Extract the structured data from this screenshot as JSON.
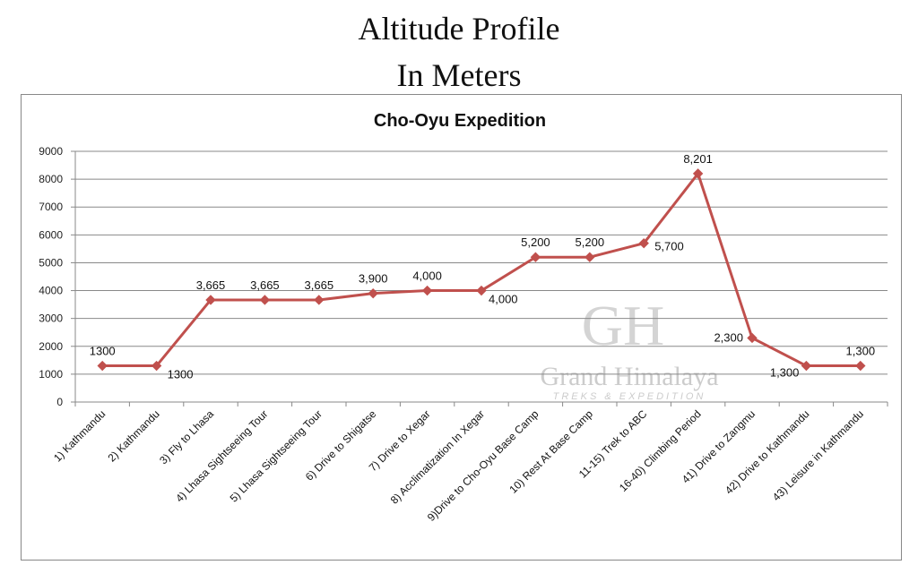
{
  "page": {
    "heading_line1": "Altitude Profile",
    "heading_line2": "In Meters"
  },
  "watermark": {
    "monogram": "GH",
    "name": "Grand Himalaya",
    "tagline": "TREKS & EXPEDITION"
  },
  "colors": {
    "series": "#C0504D",
    "grid": "#888888"
  },
  "chart_data": {
    "type": "line",
    "title": "Cho-Oyu Expedition",
    "xlabel": "",
    "ylabel": "",
    "ylim": [
      0,
      9000
    ],
    "yticks": [
      "0",
      "1000",
      "2000",
      "3000",
      "4000",
      "5000",
      "6000",
      "7000",
      "8000",
      "9000"
    ],
    "grid": true,
    "legend": "none",
    "categories": [
      "1) Kathmandu",
      "2) Kathmandu",
      "3) Fly to Lhasa",
      "4) Lhasa Sightseeing Tour",
      "5) Lhasa Sightseeing Tour",
      "6) Drive to Shigatse",
      "7) Drive to Xegar",
      "8) Acclimatization In Xegar",
      "9)Drive to Cho-Oyu Base Camp",
      "10) Rest At Base Camp",
      "11-15) Trek to ABC",
      "16-40) Climbing Period",
      "41) Drive to Zangmu",
      "42) Drive to Kathmandu",
      "43) Leisure in Kathmandu"
    ],
    "values": [
      1300,
      1300,
      3665,
      3665,
      3665,
      3900,
      4000,
      4000,
      5200,
      5200,
      5700,
      8201,
      2300,
      1300,
      1300
    ],
    "data_labels": [
      "1300",
      "1300",
      "3,665",
      "3,665",
      "3,665",
      "3,900",
      "4,000",
      "4,000",
      "5,200",
      "5,200",
      "5,700",
      "8,201",
      "2,300",
      "1,300",
      "1,300"
    ]
  }
}
